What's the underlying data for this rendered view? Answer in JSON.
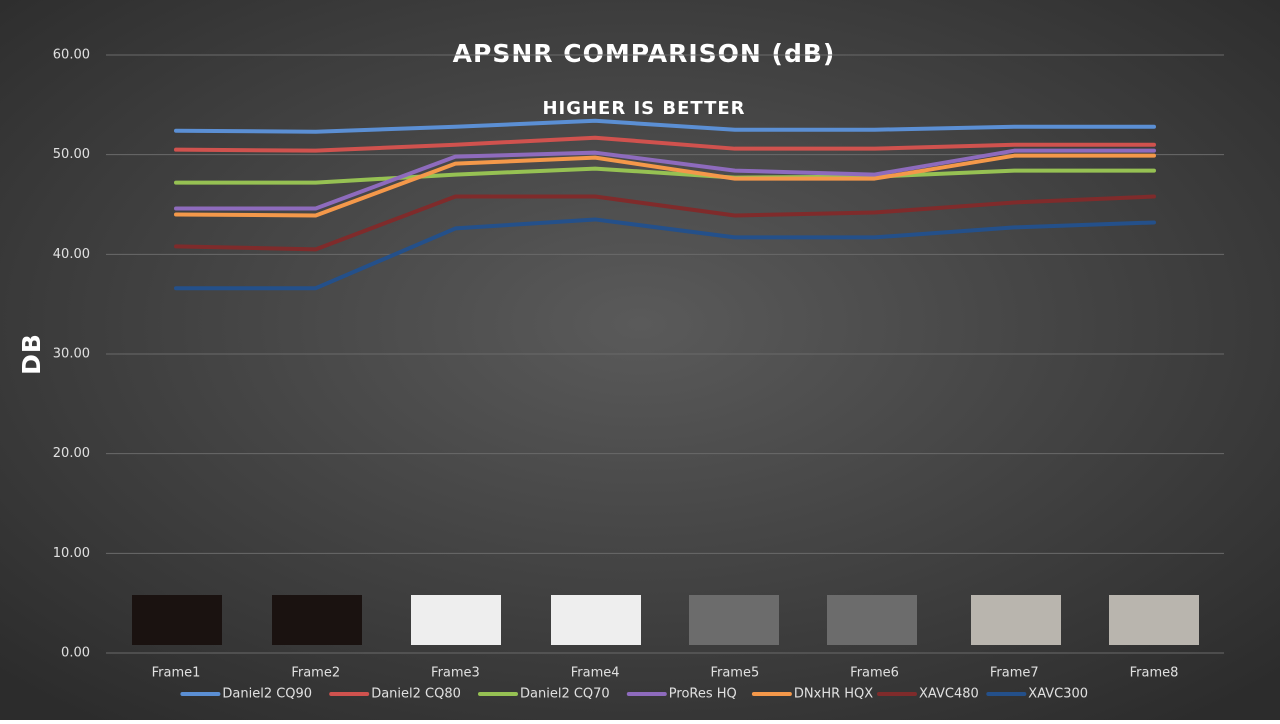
{
  "chart_data": {
    "type": "line",
    "title": "APSNR COMPARISON (dB)",
    "subtitle": "HIGHER IS BETTER",
    "y_label": "DB",
    "categories": [
      "Frame1",
      "Frame2",
      "Frame3",
      "Frame4",
      "Frame5",
      "Frame6",
      "Frame7",
      "Frame8"
    ],
    "series": [
      {
        "name": "Daniel2 CQ90",
        "color": "#5b8fd4",
        "values": [
          52.4,
          52.3,
          52.8,
          53.4,
          52.5,
          52.5,
          52.8,
          52.8
        ]
      },
      {
        "name": "Daniel2 CQ80",
        "color": "#d0524e",
        "values": [
          50.5,
          50.4,
          51.0,
          51.7,
          50.6,
          50.6,
          51.0,
          51.0
        ]
      },
      {
        "name": "Daniel2 CQ70",
        "color": "#96c153",
        "values": [
          47.2,
          47.2,
          48.0,
          48.6,
          47.7,
          47.8,
          48.4,
          48.4
        ]
      },
      {
        "name": "ProRes HQ",
        "color": "#8e6bbd",
        "values": [
          44.6,
          44.6,
          49.8,
          50.2,
          48.4,
          48.0,
          50.4,
          50.4
        ]
      },
      {
        "name": "DNxHR HQX",
        "color": "#f4984a",
        "values": [
          44.0,
          43.9,
          49.1,
          49.7,
          47.6,
          47.6,
          49.9,
          49.9
        ]
      },
      {
        "name": "XAVC480",
        "color": "#7f2b2b",
        "values": [
          40.8,
          40.5,
          45.8,
          45.8,
          43.9,
          44.2,
          45.2,
          45.8
        ]
      },
      {
        "name": "XAVC300",
        "color": "#24508a",
        "values": [
          36.6,
          36.6,
          42.6,
          43.5,
          41.7,
          41.7,
          42.7,
          43.2
        ]
      }
    ],
    "ylim": [
      0,
      60
    ],
    "yticks": [
      {
        "value": 0,
        "label": "0.00"
      },
      {
        "value": 10,
        "label": "10.00"
      },
      {
        "value": 20,
        "label": "20.00"
      },
      {
        "value": 30,
        "label": "30.00"
      },
      {
        "value": 40,
        "label": "40.00"
      },
      {
        "value": 50,
        "label": "50.00"
      },
      {
        "value": 60,
        "label": "60.00"
      }
    ],
    "grid": true,
    "legend": "bottom"
  }
}
